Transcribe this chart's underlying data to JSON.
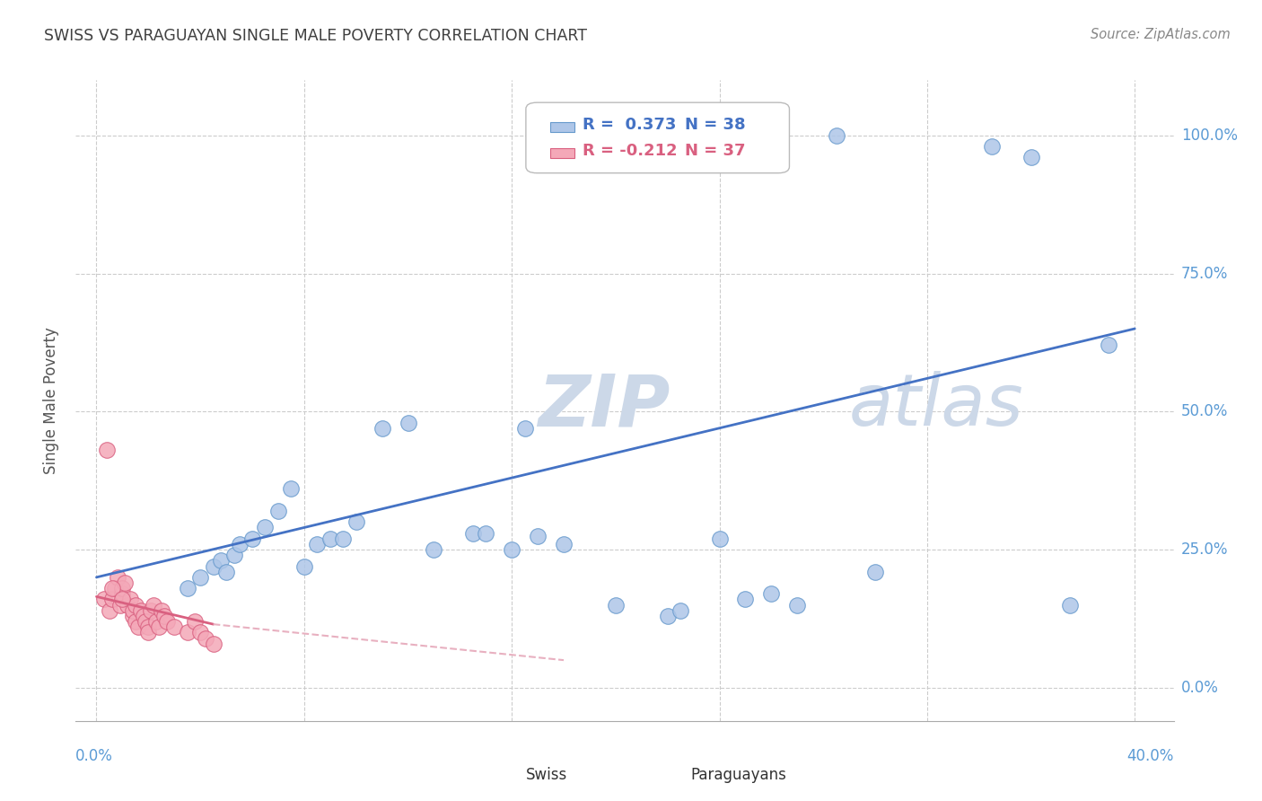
{
  "title": "SWISS VS PARAGUAYAN SINGLE MALE POVERTY CORRELATION CHART",
  "source": "Source: ZipAtlas.com",
  "ylabel": "Single Male Poverty",
  "legend_swiss_r": "R =  0.373",
  "legend_swiss_n": "N = 38",
  "legend_para_r": "R = -0.212",
  "legend_para_n": "N = 37",
  "swiss_color": "#aec6e8",
  "swiss_edge": "#6699cc",
  "para_color": "#f4a8b8",
  "para_edge": "#d96080",
  "blue_line_color": "#4472c4",
  "pink_line_color": "#d96080",
  "pink_dash_color": "#e8b0c0",
  "watermark_zip_color": "#ccd8e8",
  "watermark_atlas_color": "#ccd8e8",
  "title_color": "#404040",
  "axis_label_color": "#5b9bd5",
  "right_tick_color": "#5b9bd5",
  "swiss_x": [
    3.5,
    4.0,
    4.5,
    4.8,
    5.0,
    5.3,
    5.5,
    6.0,
    6.5,
    7.0,
    7.5,
    8.0,
    8.5,
    9.0,
    9.5,
    10.0,
    11.0,
    12.0,
    13.0,
    14.5,
    15.0,
    16.5,
    17.0,
    18.0,
    20.0,
    22.0,
    22.5,
    24.0,
    25.0,
    26.0,
    27.0,
    28.5,
    30.0,
    34.5,
    36.0,
    37.5,
    39.0,
    16.0
  ],
  "swiss_y": [
    18.0,
    20.0,
    22.0,
    23.0,
    21.0,
    24.0,
    26.0,
    27.0,
    29.0,
    32.0,
    36.0,
    22.0,
    26.0,
    27.0,
    27.0,
    30.0,
    47.0,
    48.0,
    25.0,
    28.0,
    28.0,
    47.0,
    27.5,
    26.0,
    15.0,
    13.0,
    14.0,
    27.0,
    16.0,
    17.0,
    15.0,
    100.0,
    21.0,
    98.0,
    96.0,
    15.0,
    62.0,
    25.0
  ],
  "para_x": [
    0.3,
    0.5,
    0.6,
    0.7,
    0.8,
    0.9,
    1.0,
    1.0,
    1.1,
    1.2,
    1.3,
    1.4,
    1.4,
    1.5,
    1.5,
    1.6,
    1.7,
    1.8,
    1.9,
    2.0,
    2.0,
    2.1,
    2.2,
    2.3,
    2.4,
    2.5,
    2.6,
    2.7,
    3.0,
    3.5,
    3.8,
    4.0,
    4.2,
    4.5,
    0.4,
    0.6,
    1.0
  ],
  "para_y": [
    16.0,
    14.0,
    16.0,
    18.0,
    20.0,
    15.0,
    17.0,
    18.0,
    19.0,
    15.0,
    16.0,
    13.0,
    14.0,
    15.0,
    12.0,
    11.0,
    14.0,
    13.0,
    12.0,
    11.0,
    10.0,
    14.0,
    15.0,
    12.0,
    11.0,
    14.0,
    13.0,
    12.0,
    11.0,
    10.0,
    12.0,
    10.0,
    9.0,
    8.0,
    43.0,
    18.0,
    16.0
  ],
  "xlim": [
    -0.8,
    41.5
  ],
  "ylim": [
    -6,
    110
  ],
  "xgrid": [
    0,
    8,
    16,
    24,
    32,
    40
  ],
  "ygrid": [
    0,
    25,
    50,
    75,
    100
  ],
  "swiss_line_x0": 0,
  "swiss_line_x1": 40,
  "swiss_line_y0": 20,
  "swiss_line_y1": 65,
  "para_line_x0": 0,
  "para_line_x1": 4.5,
  "para_line_y0": 16.5,
  "para_line_y1": 11.5,
  "para_dash_x0": 4.5,
  "para_dash_x1": 18,
  "para_dash_y0": 11.5,
  "para_dash_y1": 5.0
}
